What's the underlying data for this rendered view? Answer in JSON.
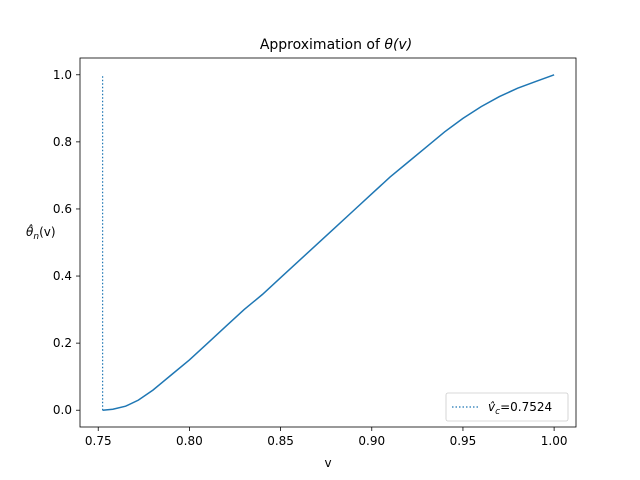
{
  "chart_data": {
    "type": "line",
    "title_prefix": "Approximation of ",
    "title_math": "θ(v)",
    "xlabel": "v",
    "ylabel_main": "θ̂",
    "ylabel_sub": "n",
    "ylabel_tail": "(v)",
    "xlim": [
      0.74,
      1.012
    ],
    "ylim": [
      -0.05,
      1.05
    ],
    "xticks": [
      0.75,
      0.8,
      0.85,
      0.9,
      0.95,
      1.0
    ],
    "xtick_labels": [
      "0.75",
      "0.80",
      "0.85",
      "0.90",
      "0.95",
      "1.00"
    ],
    "yticks": [
      0.0,
      0.2,
      0.4,
      0.6,
      0.8,
      1.0
    ],
    "ytick_labels": [
      "0.0",
      "0.2",
      "0.4",
      "0.6",
      "0.8",
      "1.0"
    ],
    "grid": false,
    "series": [
      {
        "color": "#1f77b4",
        "style": "solid",
        "x": [
          0.7524,
          0.758,
          0.765,
          0.772,
          0.78,
          0.79,
          0.8,
          0.81,
          0.82,
          0.83,
          0.84,
          0.85,
          0.86,
          0.87,
          0.88,
          0.89,
          0.9,
          0.91,
          0.92,
          0.93,
          0.94,
          0.95,
          0.96,
          0.97,
          0.98,
          0.99,
          1.0
        ],
        "y": [
          0.0,
          0.003,
          0.012,
          0.03,
          0.06,
          0.105,
          0.15,
          0.2,
          0.25,
          0.3,
          0.345,
          0.395,
          0.445,
          0.495,
          0.545,
          0.595,
          0.645,
          0.695,
          0.74,
          0.785,
          0.83,
          0.87,
          0.905,
          0.935,
          0.96,
          0.98,
          1.0
        ]
      }
    ],
    "vline": {
      "x": 0.7524,
      "y_range": [
        0.0,
        1.0
      ],
      "color": "#1f77b4",
      "style": "dotted",
      "legend_main": "v̂",
      "legend_sub": "c",
      "legend_tail": "=0.7524"
    },
    "legend_position": "lower-right"
  }
}
